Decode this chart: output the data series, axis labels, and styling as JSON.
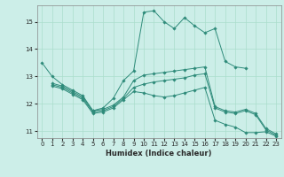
{
  "xlabel": "Humidex (Indice chaleur)",
  "bg_color": "#cceee8",
  "line_color": "#2e8b7a",
  "grid_color": "#aaddcc",
  "xlim": [
    -0.5,
    23.5
  ],
  "ylim": [
    10.75,
    15.6
  ],
  "yticks": [
    11,
    12,
    13,
    14,
    15
  ],
  "xticks": [
    0,
    1,
    2,
    3,
    4,
    5,
    6,
    7,
    8,
    9,
    10,
    11,
    12,
    13,
    14,
    15,
    16,
    17,
    18,
    19,
    20,
    21,
    22,
    23
  ],
  "series1_x": [
    0,
    1,
    2,
    3,
    4,
    5,
    6,
    7,
    8,
    9,
    10,
    11,
    12,
    13,
    14,
    15,
    16,
    17,
    18,
    19,
    20
  ],
  "series1_y": [
    13.5,
    13.0,
    12.7,
    12.5,
    12.3,
    11.75,
    11.85,
    12.2,
    12.85,
    13.2,
    15.35,
    15.4,
    15.0,
    14.75,
    15.15,
    14.85,
    14.6,
    14.75,
    13.55,
    13.35,
    13.3
  ],
  "series2_x": [
    1,
    2,
    3,
    4,
    5,
    6,
    7,
    8,
    9,
    10,
    11,
    12,
    13,
    14,
    15,
    16,
    17,
    18,
    19,
    20,
    21,
    22,
    23
  ],
  "series2_y": [
    12.75,
    12.65,
    12.45,
    12.25,
    11.75,
    11.8,
    11.95,
    12.25,
    12.85,
    13.05,
    13.1,
    13.15,
    13.2,
    13.25,
    13.3,
    13.35,
    11.9,
    11.75,
    11.7,
    11.8,
    11.65,
    11.1,
    10.9
  ],
  "series3_x": [
    1,
    2,
    3,
    4,
    5,
    6,
    7,
    8,
    9,
    10,
    11,
    12,
    13,
    14,
    15,
    16,
    17,
    18,
    19,
    20,
    21,
    22,
    23
  ],
  "series3_y": [
    12.7,
    12.6,
    12.4,
    12.2,
    11.7,
    11.75,
    11.9,
    12.2,
    12.6,
    12.72,
    12.8,
    12.85,
    12.9,
    12.95,
    13.05,
    13.1,
    11.85,
    11.7,
    11.65,
    11.75,
    11.6,
    11.05,
    10.85
  ],
  "series4_x": [
    1,
    2,
    3,
    4,
    5,
    6,
    7,
    8,
    9,
    10,
    11,
    12,
    13,
    14,
    15,
    16,
    17,
    18,
    19,
    20,
    21,
    22,
    23
  ],
  "series4_y": [
    12.65,
    12.55,
    12.35,
    12.15,
    11.65,
    11.7,
    11.85,
    12.15,
    12.45,
    12.4,
    12.3,
    12.25,
    12.3,
    12.4,
    12.5,
    12.6,
    11.4,
    11.25,
    11.15,
    10.95,
    10.95,
    10.98,
    10.82
  ]
}
